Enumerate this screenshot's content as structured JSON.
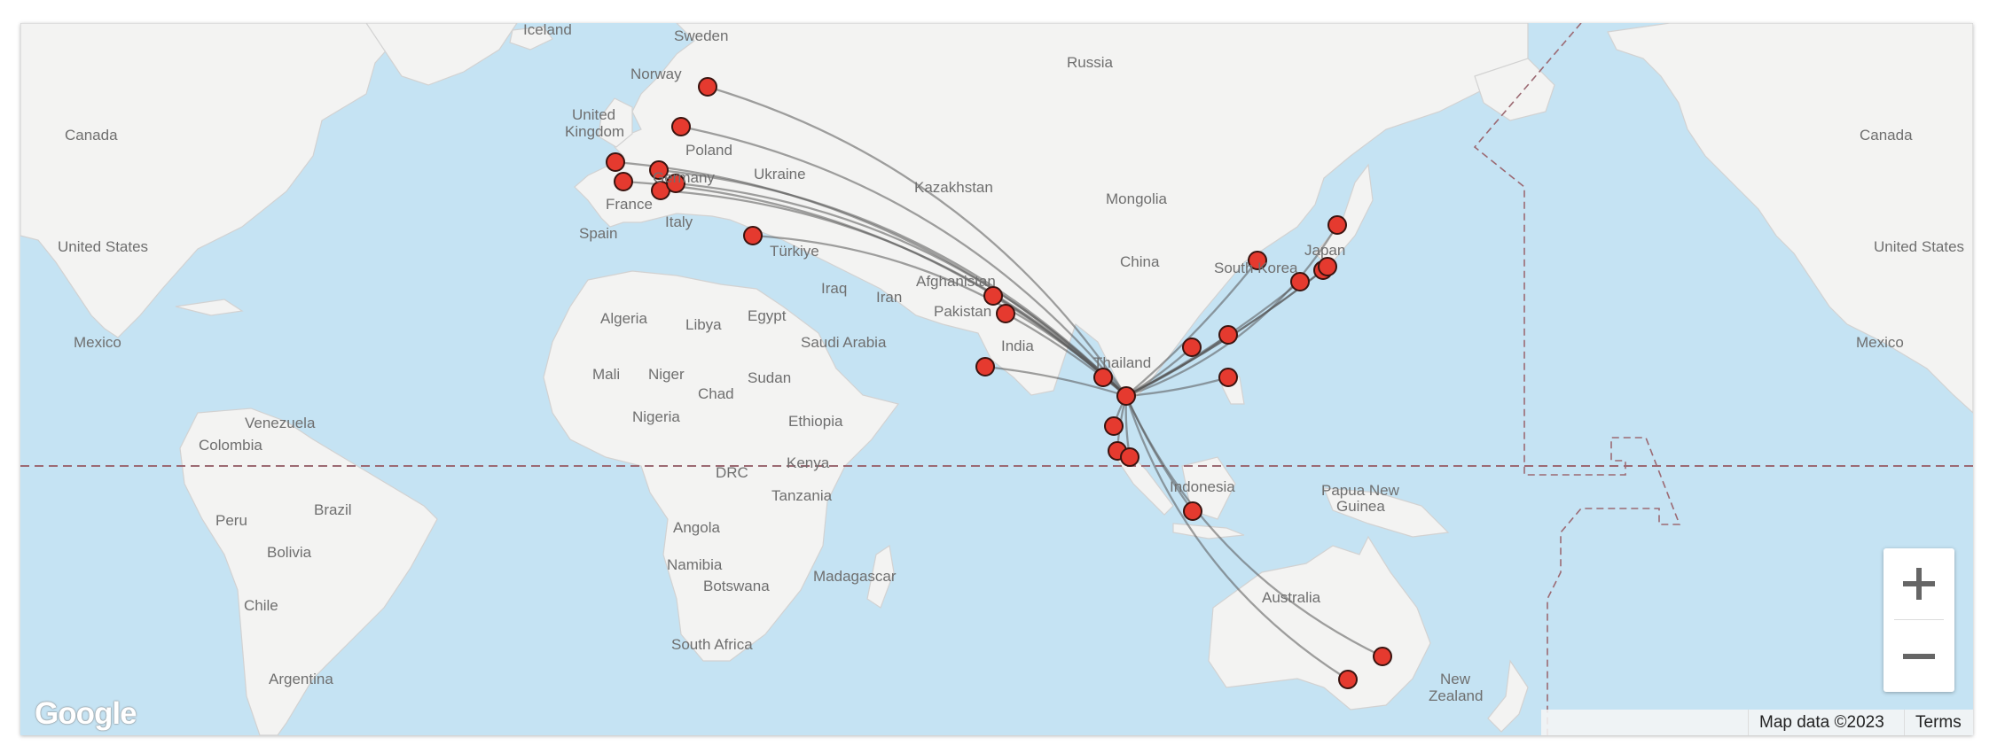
{
  "map": {
    "labels": [
      {
        "name": "iceland",
        "text": "Iceland"
      },
      {
        "name": "sweden",
        "text": "Sweden"
      },
      {
        "name": "norway",
        "text": "Norway"
      },
      {
        "name": "russia",
        "text": "Russia"
      },
      {
        "name": "canada-west",
        "text": "Canada"
      },
      {
        "name": "canada-east",
        "text": "Canada"
      },
      {
        "name": "united-kingdom-1",
        "text": "United"
      },
      {
        "name": "united-kingdom-2",
        "text": "Kingdom"
      },
      {
        "name": "poland",
        "text": "Poland"
      },
      {
        "name": "germany",
        "text": "Germany"
      },
      {
        "name": "ukraine",
        "text": "Ukraine"
      },
      {
        "name": "kazakhstan",
        "text": "Kazakhstan"
      },
      {
        "name": "mongolia",
        "text": "Mongolia"
      },
      {
        "name": "france",
        "text": "France"
      },
      {
        "name": "united-states-west",
        "text": "United States"
      },
      {
        "name": "united-states-east",
        "text": "United States"
      },
      {
        "name": "spain",
        "text": "Spain"
      },
      {
        "name": "italy",
        "text": "Italy"
      },
      {
        "name": "turkiye",
        "text": "Türkiye"
      },
      {
        "name": "china",
        "text": "China"
      },
      {
        "name": "south-korea",
        "text": "South Korea"
      },
      {
        "name": "japan",
        "text": "Japan"
      },
      {
        "name": "afghanistan",
        "text": "Afghanistan"
      },
      {
        "name": "pakistan",
        "text": "Pakistan"
      },
      {
        "name": "iraq",
        "text": "Iraq"
      },
      {
        "name": "iran",
        "text": "Iran"
      },
      {
        "name": "algeria",
        "text": "Algeria"
      },
      {
        "name": "libya",
        "text": "Libya"
      },
      {
        "name": "egypt",
        "text": "Egypt"
      },
      {
        "name": "saudi-arabia",
        "text": "Saudi Arabia"
      },
      {
        "name": "india",
        "text": "India"
      },
      {
        "name": "mexico-west",
        "text": "Mexico"
      },
      {
        "name": "mexico-east",
        "text": "Mexico"
      },
      {
        "name": "thailand",
        "text": "Thailand"
      },
      {
        "name": "mali",
        "text": "Mali"
      },
      {
        "name": "niger",
        "text": "Niger"
      },
      {
        "name": "sudan",
        "text": "Sudan"
      },
      {
        "name": "chad",
        "text": "Chad"
      },
      {
        "name": "venezuela",
        "text": "Venezuela"
      },
      {
        "name": "colombia",
        "text": "Colombia"
      },
      {
        "name": "nigeria",
        "text": "Nigeria"
      },
      {
        "name": "ethiopia",
        "text": "Ethiopia"
      },
      {
        "name": "kenya",
        "text": "Kenya"
      },
      {
        "name": "drc",
        "text": "DRC"
      },
      {
        "name": "papua-new-guinea-1",
        "text": "Papua New"
      },
      {
        "name": "papua-new-guinea-2",
        "text": "Guinea"
      },
      {
        "name": "indonesia",
        "text": "Indonesia"
      },
      {
        "name": "tanzania",
        "text": "Tanzania"
      },
      {
        "name": "peru",
        "text": "Peru"
      },
      {
        "name": "brazil",
        "text": "Brazil"
      },
      {
        "name": "angola",
        "text": "Angola"
      },
      {
        "name": "bolivia",
        "text": "Bolivia"
      },
      {
        "name": "namibia",
        "text": "Namibia"
      },
      {
        "name": "madagascar",
        "text": "Madagascar"
      },
      {
        "name": "botswana",
        "text": "Botswana"
      },
      {
        "name": "australia",
        "text": "Australia"
      },
      {
        "name": "chile",
        "text": "Chile"
      },
      {
        "name": "south-africa",
        "text": "South Africa"
      },
      {
        "name": "argentina",
        "text": "Argentina"
      },
      {
        "name": "new-zealand-1",
        "text": "New"
      },
      {
        "name": "new-zealand-2",
        "text": "Zealand"
      }
    ],
    "colors": {
      "marker": "#e53a2f",
      "route": "#555555",
      "water": "#c5e3f3",
      "land": "#f3f3f2"
    }
  },
  "controls": {
    "zoom_in_icon": "plus-icon",
    "zoom_out_icon": "minus-icon"
  },
  "attribution": {
    "logo": "Google",
    "map_data": "Map data ©2023",
    "terms": "Terms"
  }
}
